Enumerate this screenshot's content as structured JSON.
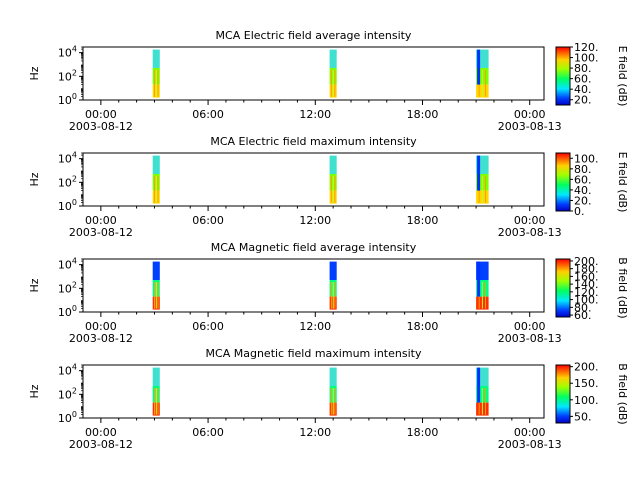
{
  "figure": {
    "panels": [
      {
        "title": "MCA  Electric field average intensity",
        "ylabel": "Hz",
        "cblabel": "E field (dB)"
      },
      {
        "title": "MCA  Electric field maximum intensity",
        "ylabel": "Hz",
        "cblabel": "E field (dB)"
      },
      {
        "title": "MCA  Magnetic field average intensity",
        "ylabel": "Hz",
        "cblabel": "B field (dB)"
      },
      {
        "title": "MCA  Magnetic field maximum intensity",
        "ylabel": "Hz",
        "cblabel": "B field (dB)"
      }
    ]
  },
  "chart_data": [
    {
      "type": "heatmap",
      "title": "MCA  Electric field average intensity",
      "ylabel": "Hz",
      "yscale": "log",
      "ylim": [
        1,
        30000
      ],
      "y_ticks": [
        "10^0",
        "10^2",
        "10^4"
      ],
      "x_ticks": [
        "00:00\n2003-08-12",
        "06:00",
        "12:00",
        "18:00",
        "00:00\n2003-08-13"
      ],
      "xlim_hours": [
        -1,
        24.8
      ],
      "colorbar": {
        "label": "E field (dB)",
        "range": [
          10,
          120
        ],
        "ticks": [
          "20.",
          "40.",
          "60.",
          "80.",
          "100.",
          "120."
        ],
        "colormap": "rainbow (blue-green-yellow-red)"
      },
      "data_intervals_hours": [
        [
          2.9,
          3.3
        ],
        [
          12.8,
          13.2
        ],
        [
          21.0,
          21.7
        ]
      ],
      "colors": {
        "low_freq": "#ffd700",
        "mid_freq": "#7fff00",
        "high_freq": "#40e0d0"
      }
    },
    {
      "type": "heatmap",
      "title": "MCA  Electric field maximum intensity",
      "ylabel": "Hz",
      "yscale": "log",
      "ylim": [
        1,
        30000
      ],
      "y_ticks": [
        "10^0",
        "10^2",
        "10^4"
      ],
      "x_ticks": [
        "00:00\n2003-08-12",
        "06:00",
        "12:00",
        "18:00",
        "00:00\n2003-08-13"
      ],
      "xlim_hours": [
        -1,
        24.8
      ],
      "colorbar": {
        "label": "E field (dB)",
        "range": [
          0,
          110
        ],
        "ticks": [
          "0.",
          "20.",
          "40.",
          "60.",
          "80.",
          "100."
        ],
        "colormap": "rainbow (blue-green-yellow-red)"
      },
      "data_intervals_hours": [
        [
          2.9,
          3.3
        ],
        [
          12.8,
          13.2
        ],
        [
          21.0,
          21.7
        ]
      ],
      "colors": {
        "low_freq": "#ffd700",
        "mid_freq": "#7fff00",
        "high_freq": "#40e0d0"
      }
    },
    {
      "type": "heatmap",
      "title": "MCA  Magnetic field average intensity",
      "ylabel": "Hz",
      "yscale": "log",
      "ylim": [
        1,
        30000
      ],
      "y_ticks": [
        "10^0",
        "10^2",
        "10^4"
      ],
      "x_ticks": [
        "00:00\n2003-08-12",
        "06:00",
        "12:00",
        "18:00",
        "00:00\n2003-08-13"
      ],
      "xlim_hours": [
        -1,
        24.8
      ],
      "colorbar": {
        "label": "B field (dB)",
        "range": [
          55,
          205
        ],
        "ticks": [
          "60.",
          "80.",
          "100.",
          "120.",
          "140.",
          "160.",
          "180.",
          "200."
        ],
        "colormap": "rainbow (blue-green-yellow-red)"
      },
      "data_intervals_hours": [
        [
          2.9,
          3.3
        ],
        [
          12.8,
          13.2
        ],
        [
          21.0,
          21.7
        ]
      ],
      "colors": {
        "low_freq": "#ff3000",
        "mid_freq": "#00ff80",
        "high_freq": "#0040ff"
      }
    },
    {
      "type": "heatmap",
      "title": "MCA  Magnetic field maximum intensity",
      "ylabel": "Hz",
      "yscale": "log",
      "ylim": [
        1,
        30000
      ],
      "y_ticks": [
        "10^0",
        "10^2",
        "10^4"
      ],
      "x_ticks": [
        "00:00\n2003-08-12",
        "06:00",
        "12:00",
        "18:00",
        "00:00\n2003-08-13"
      ],
      "xlim_hours": [
        -1,
        24.8
      ],
      "colorbar": {
        "label": "B field (dB)",
        "range": [
          30,
          205
        ],
        "ticks": [
          "50.",
          "100.",
          "150.",
          "200."
        ],
        "colormap": "rainbow (blue-green-yellow-red)"
      },
      "data_intervals_hours": [
        [
          2.9,
          3.3
        ],
        [
          12.8,
          13.2
        ],
        [
          21.0,
          21.7
        ]
      ],
      "colors": {
        "low_freq": "#ff3000",
        "mid_freq": "#00ff80",
        "high_freq": "#40e0d0"
      }
    }
  ]
}
